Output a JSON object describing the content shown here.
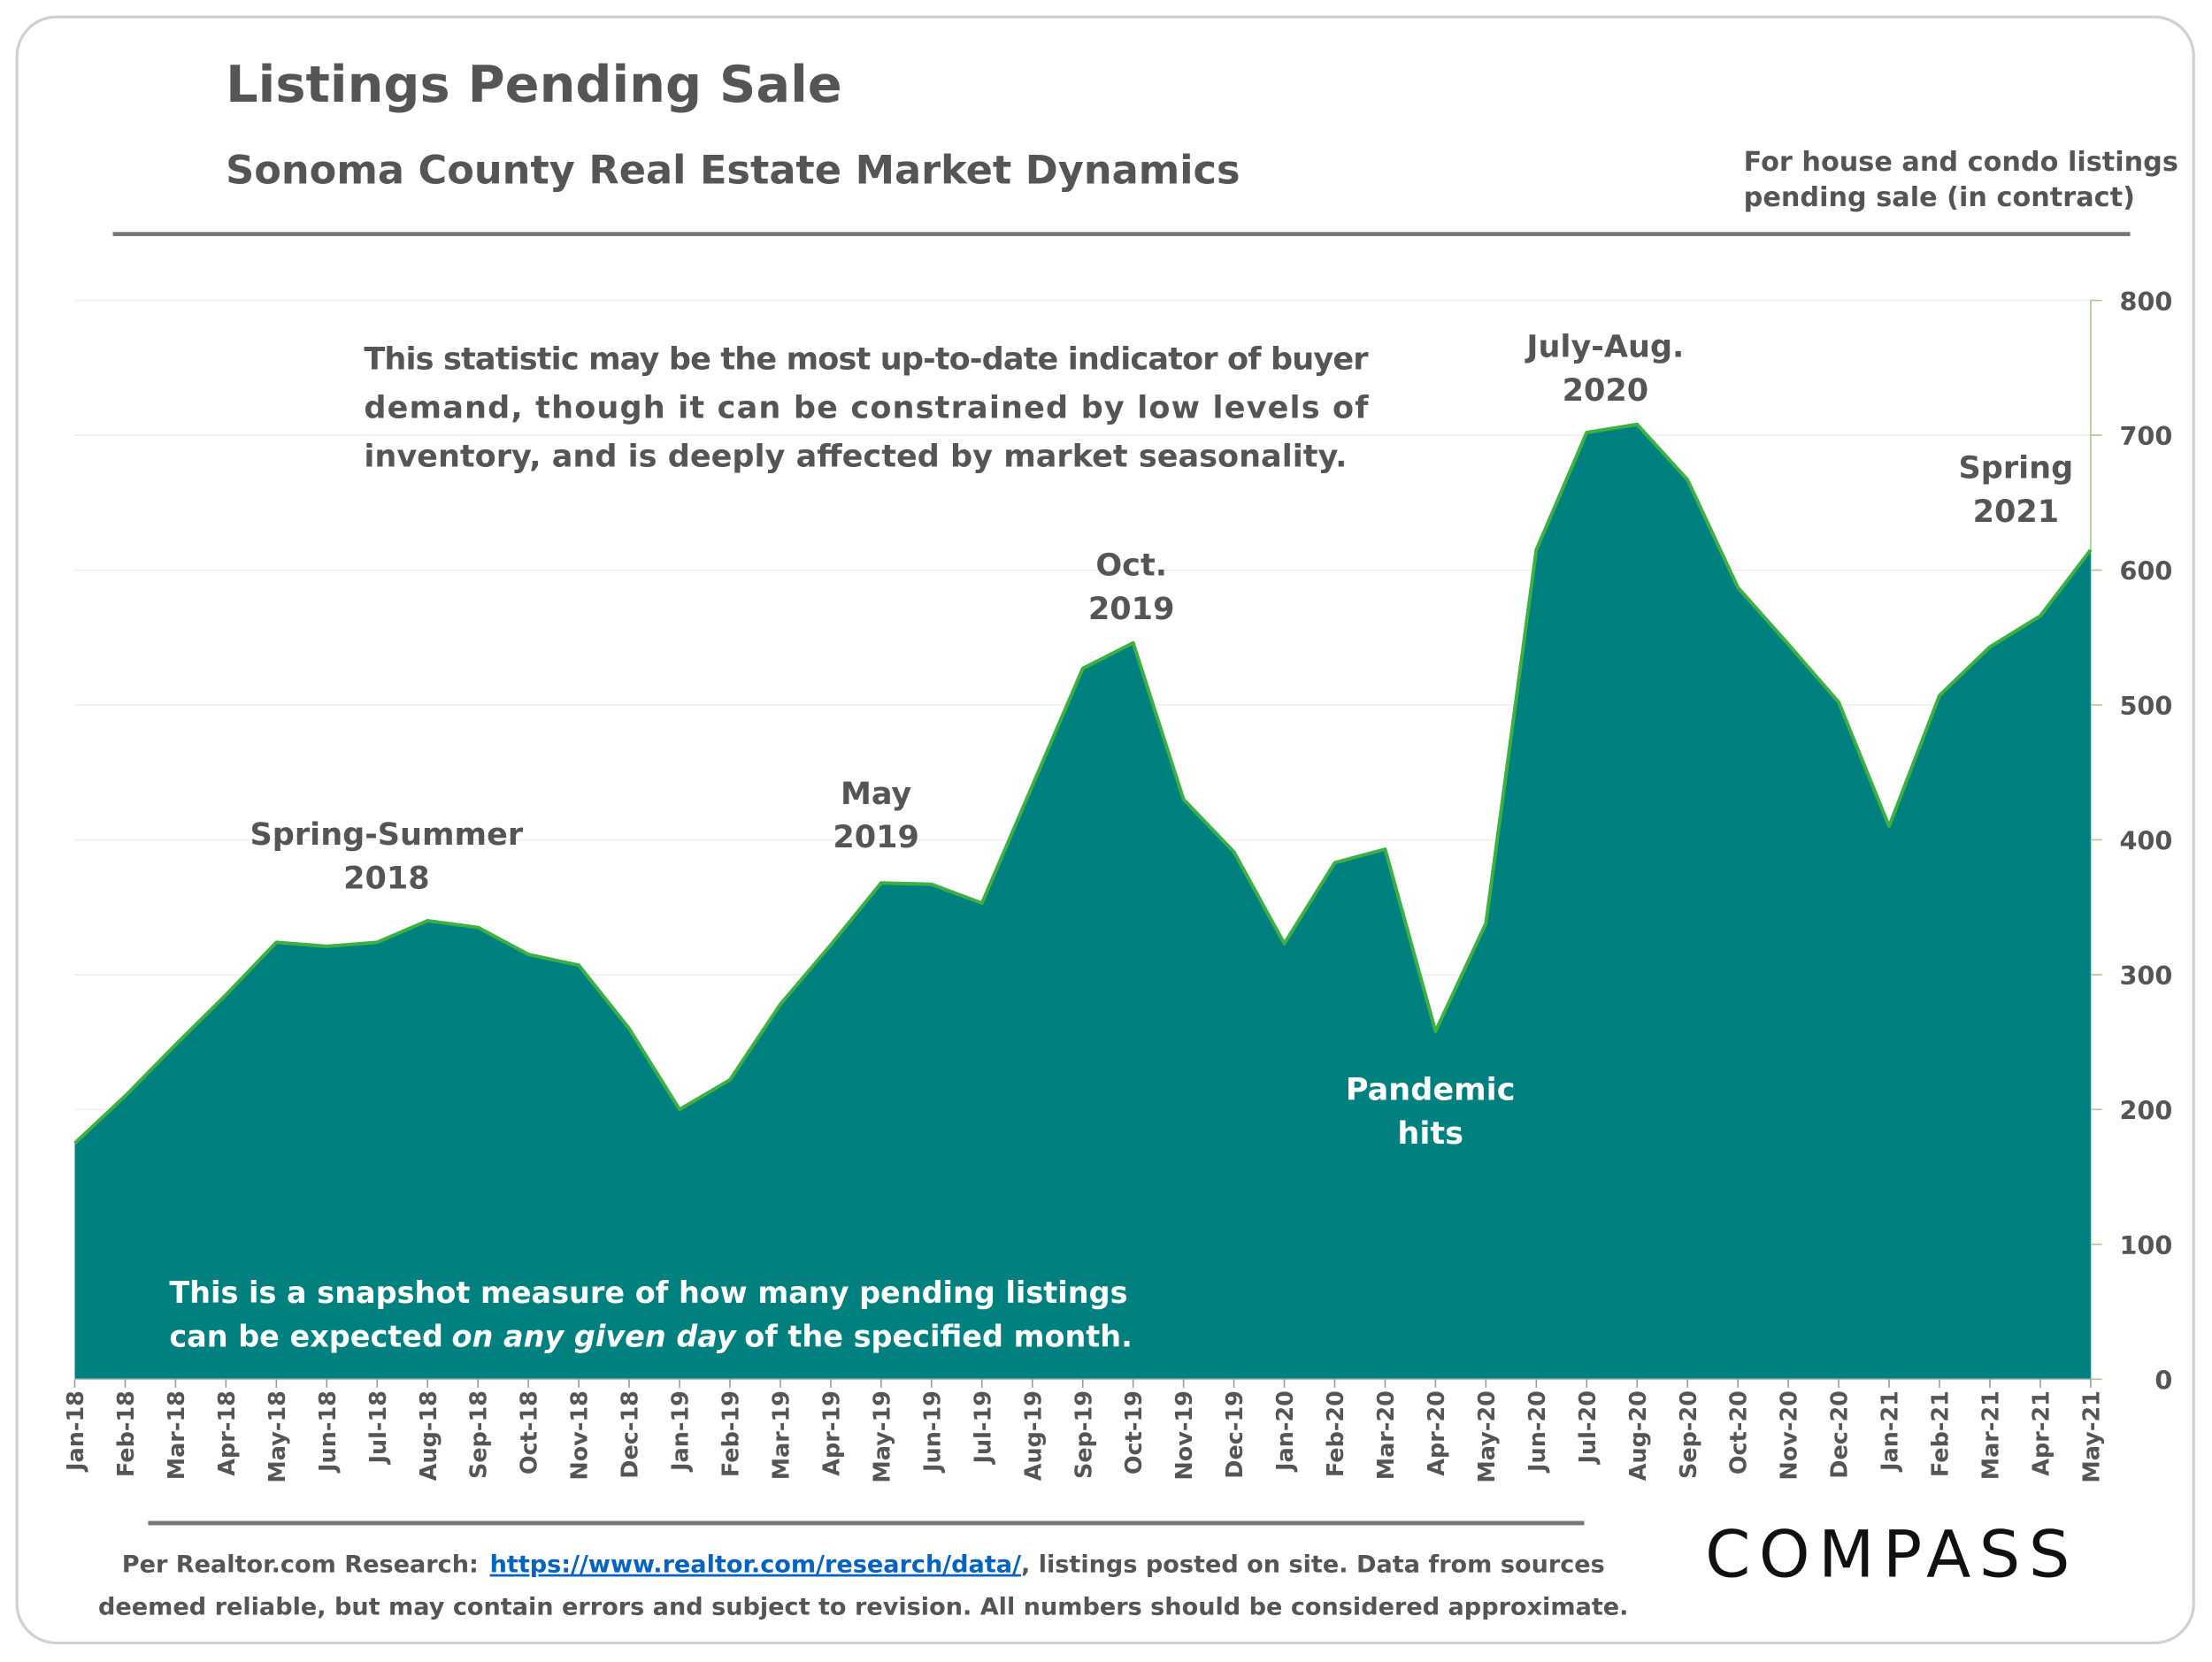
{
  "chart_data": {
    "type": "area",
    "title": "Listings Pending Sale",
    "subtitle": "Sonoma County Real Estate Market Dynamics",
    "side_note": [
      "For house and condo listings",
      "pending sale (in contract)"
    ],
    "statement": [
      "This statistic may be the most up-to-date indicator of buyer",
      "demand, though it can be constrained by low levels of",
      "inventory, and is deeply affected by market seasonality."
    ],
    "snapshot_note": {
      "line1": "This is a snapshot measure of how many pending listings",
      "line2": [
        "can be expected",
        "on any given day",
        "of the specified month."
      ]
    },
    "annotations": [
      [
        "Spring-Summer",
        "2018"
      ],
      [
        "May",
        "2019"
      ],
      [
        "Oct.",
        "2019"
      ],
      [
        "July-Aug.",
        "2020"
      ],
      [
        "Spring",
        "2021"
      ],
      [
        "Pandemic",
        "hits"
      ]
    ],
    "categories": [
      "Jan-18",
      "Feb-18",
      "Mar-18",
      "Apr-18",
      "May-18",
      "Jun-18",
      "Jul-18",
      "Aug-18",
      "Sep-18",
      "Oct-18",
      "Nov-18",
      "Dec-18",
      "Jan-19",
      "Feb-19",
      "Mar-19",
      "Apr-19",
      "May-19",
      "Jun-19",
      "Jul-19",
      "Aug-19",
      "Sep-19",
      "Oct-19",
      "Nov-19",
      "Dec-19",
      "Jan-20",
      "Feb-20",
      "Mar-20",
      "Apr-20",
      "May-20",
      "Jun-20",
      "Jul-20",
      "Aug-20",
      "Sep-20",
      "Oct-20",
      "Nov-20",
      "Dec-20",
      "Jan-21",
      "Feb-21",
      "Mar-21",
      "Apr-21",
      "May-21"
    ],
    "values": [
      175,
      210,
      248,
      285,
      324,
      321,
      324,
      340,
      335,
      315,
      307,
      260,
      200,
      222,
      278,
      322,
      368,
      367,
      353,
      440,
      527,
      546,
      430,
      391,
      323,
      383,
      393,
      258,
      338,
      615,
      702,
      708,
      667,
      587,
      545,
      502,
      410,
      507,
      543,
      566,
      615
    ],
    "color": "#00807f",
    "line_color": "#3cb043",
    "ylim": [
      0,
      800
    ],
    "yticks": [
      0,
      100,
      200,
      300,
      400,
      500,
      600,
      700,
      800
    ],
    "grid": true,
    "footer": {
      "line1": [
        "Per Realtor.com Research:",
        "https://www.realtor.com/research/data/",
        ", listings posted on site. Data from sources"
      ],
      "line2": "deemed reliable, but may contain errors and subject to revision. All numbers should be considered approximate."
    },
    "logo": "COMPASS"
  }
}
